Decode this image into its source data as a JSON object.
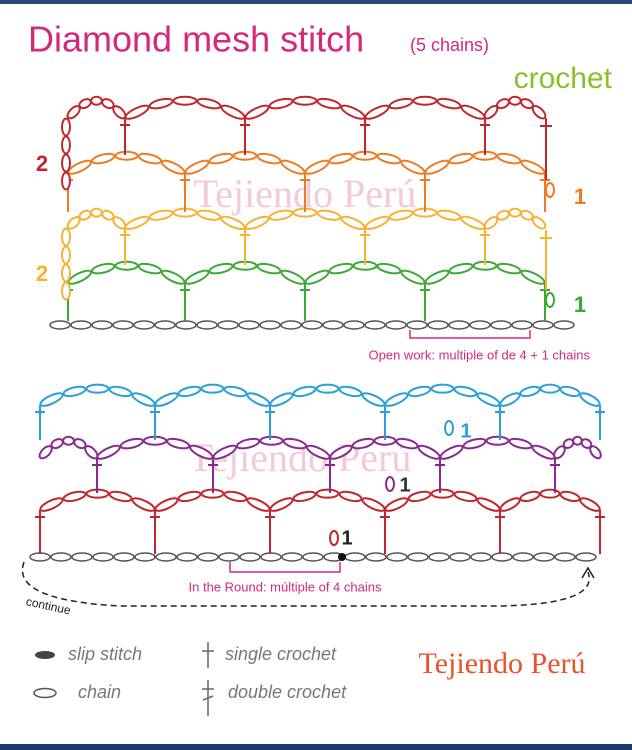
{
  "header": {
    "title": "Diamond mesh stitch",
    "subtitle": "(5 chains)",
    "tag": "crochet"
  },
  "watermarks": [
    "Tejiendo Perú",
    "Tejiendo Perú"
  ],
  "open_work": {
    "row_labels": [
      "2",
      "2",
      "1",
      "1"
    ],
    "note": "Open work: multiple of de 4 + 1 chains"
  },
  "in_the_round": {
    "row_labels": [
      "1",
      "1",
      "1"
    ],
    "note": "In the Round: múltiple of 4 chains",
    "continue": "continue"
  },
  "legend": {
    "items": [
      "slip stitch",
      "chain",
      "single crochet",
      "double crochet"
    ]
  },
  "logo": "Tejiendo Perú"
}
